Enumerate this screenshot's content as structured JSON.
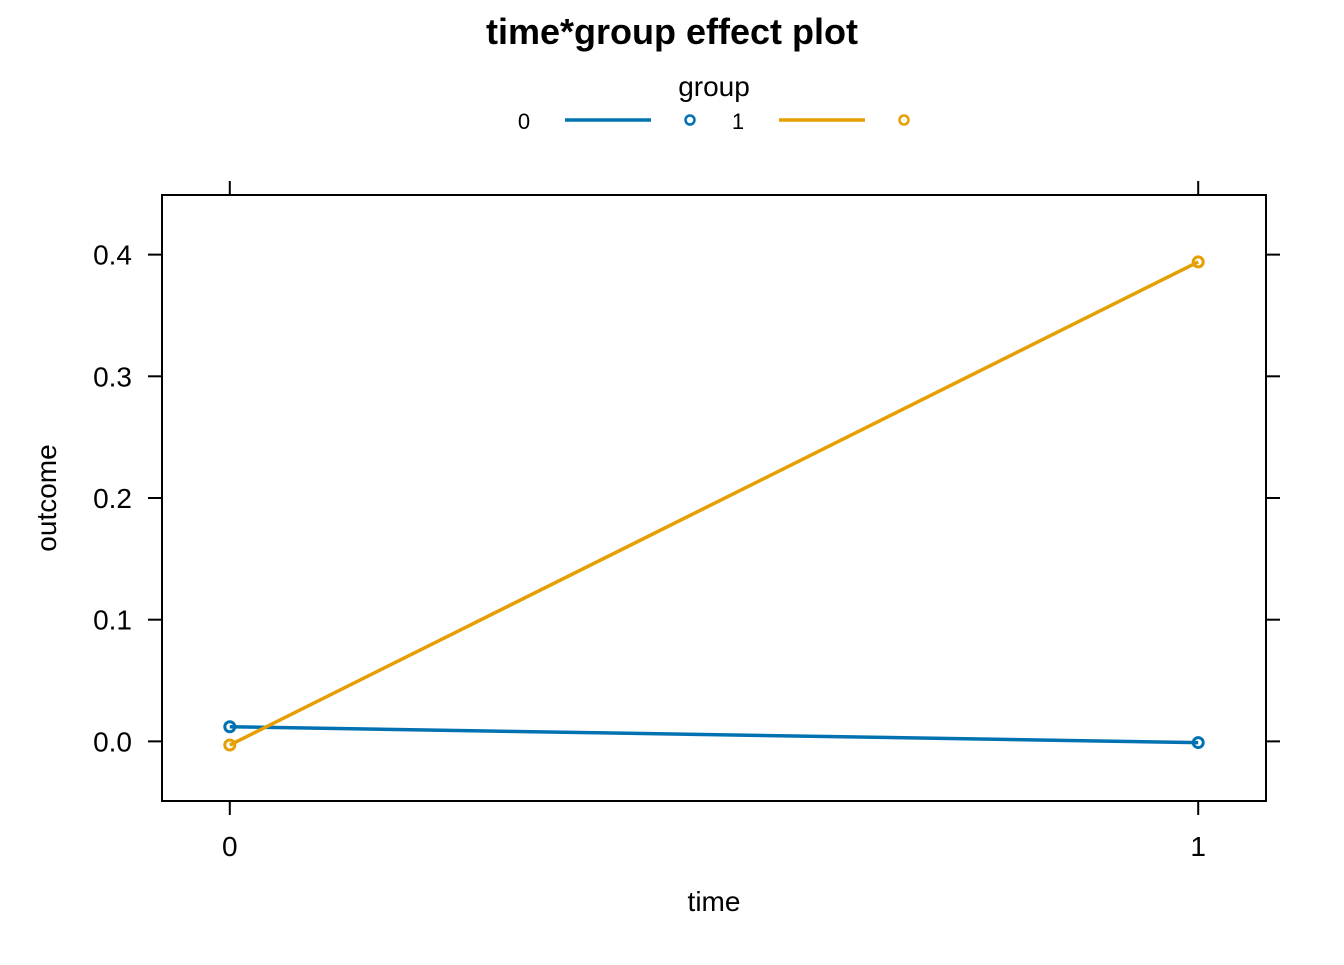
{
  "chart_data": {
    "type": "line",
    "title": "time*group effect plot",
    "xlabel": "time",
    "ylabel": "outcome",
    "x": [
      0,
      1
    ],
    "xlim": [
      -0.07,
      1.07
    ],
    "ylim": [
      -0.049,
      0.449
    ],
    "x_ticks": [
      0,
      1
    ],
    "y_ticks": [
      0.0,
      0.1,
      0.2,
      0.3,
      0.4
    ],
    "x_tick_labels": [
      "0",
      "1"
    ],
    "y_tick_labels": [
      "0.0",
      "0.1",
      "0.2",
      "0.3",
      "0.4"
    ],
    "legend": {
      "title": "group",
      "position": "top",
      "entries": [
        "0",
        "1"
      ]
    },
    "series": [
      {
        "name": "0",
        "values": [
          0.012,
          -0.001
        ],
        "color": "#0072B2"
      },
      {
        "name": "1",
        "values": [
          -0.003,
          0.394
        ],
        "color": "#E69F00"
      }
    ],
    "grid": false
  }
}
